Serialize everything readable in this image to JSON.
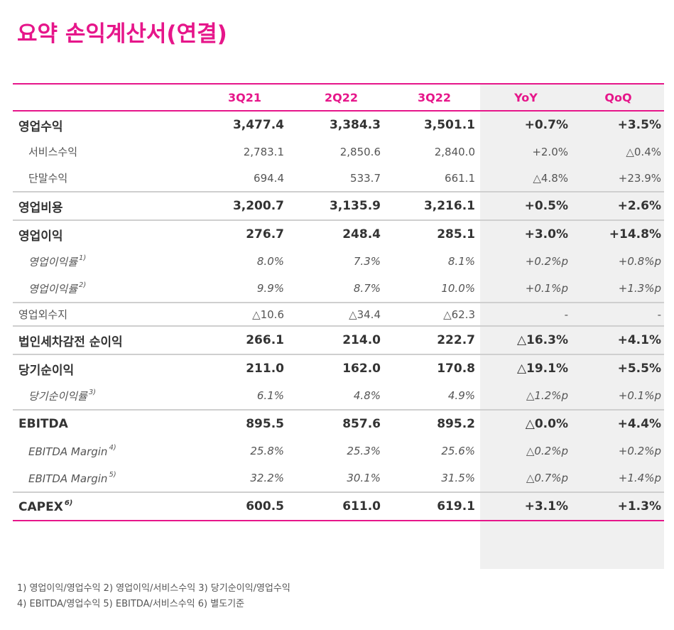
{
  "title": "요약 손익계산서(연결)",
  "colors": {
    "accent": "#e6168a",
    "shade": "#f0f0f0",
    "separator": "#cfcfcf",
    "text": "#333333"
  },
  "columns": [
    "",
    "3Q21",
    "2Q22",
    "3Q22",
    "YoY",
    "QoQ"
  ],
  "rows": [
    {
      "label": "영업수익",
      "sup": "",
      "style": "bold",
      "values": [
        "3,477.4",
        "3,384.3",
        "3,501.1",
        "+0.7%",
        "+3.5%"
      ]
    },
    {
      "label": "서비스수익",
      "sup": "",
      "style": "sub",
      "values": [
        "2,783.1",
        "2,850.6",
        "2,840.0",
        "+2.0%",
        "△0.4%"
      ]
    },
    {
      "label": "단말수익",
      "sup": "",
      "style": "sub",
      "values": [
        "694.4",
        "533.7",
        "661.1",
        "△4.8%",
        "+23.9%"
      ]
    },
    {
      "label": "영업비용",
      "sup": "",
      "style": "bold",
      "values": [
        "3,200.7",
        "3,135.9",
        "3,216.1",
        "+0.5%",
        "+2.6%"
      ]
    },
    {
      "label": "영업이익",
      "sup": "",
      "style": "bold",
      "values": [
        "276.7",
        "248.4",
        "285.1",
        "+3.0%",
        "+14.8%"
      ]
    },
    {
      "label": "영업이익률",
      "sup": "1)",
      "style": "ital",
      "values": [
        "8.0%",
        "7.3%",
        "8.1%",
        "+0.2%p",
        "+0.8%p"
      ]
    },
    {
      "label": "영업이익률",
      "sup": "2)",
      "style": "ital",
      "values": [
        "9.9%",
        "8.7%",
        "10.0%",
        "+0.1%p",
        "+1.3%p"
      ]
    },
    {
      "label": "영업외수지",
      "sup": "",
      "style": "plain",
      "values": [
        "△10.6",
        "△34.4",
        "△62.3",
        "-",
        "-"
      ]
    },
    {
      "label": "법인세차감전 순이익",
      "sup": "",
      "style": "bold",
      "values": [
        "266.1",
        "214.0",
        "222.7",
        "△16.3%",
        "+4.1%"
      ]
    },
    {
      "label": "당기순이익",
      "sup": "",
      "style": "bold",
      "values": [
        "211.0",
        "162.0",
        "170.8",
        "△19.1%",
        "+5.5%"
      ]
    },
    {
      "label": "당기순이익률",
      "sup": "3)",
      "style": "ital",
      "values": [
        "6.1%",
        "4.8%",
        "4.9%",
        "△1.2%p",
        "+0.1%p"
      ]
    },
    {
      "label": "EBITDA",
      "sup": "",
      "style": "bold",
      "values": [
        "895.5",
        "857.6",
        "895.2",
        "△0.0%",
        "+4.4%"
      ]
    },
    {
      "label": "EBITDA Margin",
      "sup": "4)",
      "style": "ital",
      "values": [
        "25.8%",
        "25.3%",
        "25.6%",
        "△0.2%p",
        "+0.2%p"
      ]
    },
    {
      "label": "EBITDA Margin",
      "sup": "5)",
      "style": "ital",
      "values": [
        "32.2%",
        "30.1%",
        "31.5%",
        "△0.7%p",
        "+1.4%p"
      ]
    },
    {
      "label": "CAPEX",
      "sup": "6)",
      "style": "bold",
      "values": [
        "600.5",
        "611.0",
        "619.1",
        "+3.1%",
        "+1.3%"
      ]
    }
  ],
  "notes": [
    "1) 영업이익/영업수익  2) 영업이익/서비스수익  3) 당기순이익/영업수익",
    "4) EBITDA/영업수익  5) EBITDA/서비스수익 6) 별도기준"
  ]
}
